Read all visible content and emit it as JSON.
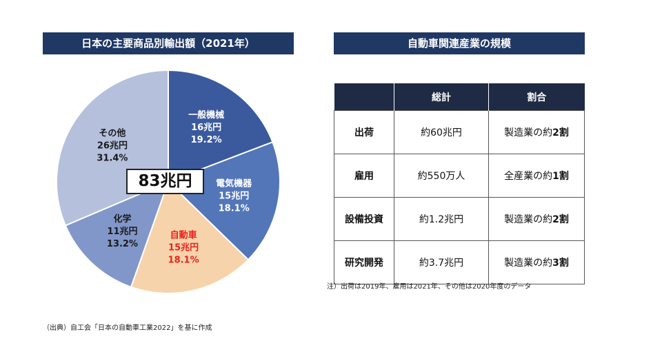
{
  "left_panel": {
    "title": "日本の主要商品別輸出額（2021年）"
  },
  "right_panel": {
    "title": "自動車関連産業の規模"
  },
  "chart_data": {
    "type": "pie",
    "title": "日本の主要商品別輸出額（2021年）",
    "total_label": "83兆円",
    "slices": [
      {
        "label": "一般機械",
        "value_label": "16兆円",
        "percent_label": "19.2%",
        "percent": 19.2,
        "color": "#3b5a9e",
        "text_color": "#ffffff"
      },
      {
        "label": "電気機器",
        "value_label": "15兆円",
        "percent_label": "18.1%",
        "percent": 18.1,
        "color": "#5276b8",
        "text_color": "#ffffff"
      },
      {
        "label": "自動車",
        "value_label": "15兆円",
        "percent_label": "18.1%",
        "percent": 18.1,
        "color": "#f7d3ab",
        "text_color": "#e8231d"
      },
      {
        "label": "化学",
        "value_label": "11兆円",
        "percent_label": "13.2%",
        "percent": 13.2,
        "color": "#8297c9",
        "text_color": "#1a1a1a"
      },
      {
        "label": "その他",
        "value_label": "26兆円",
        "percent_label": "31.4%",
        "percent": 31.4,
        "color": "#b4c0dc",
        "text_color": "#1a1a1a"
      }
    ]
  },
  "table": {
    "headers": [
      "",
      "総計",
      "割合"
    ],
    "rows": [
      {
        "label": "出荷",
        "total": "約60兆円",
        "ratio_prefix": "製造業の約",
        "ratio_num": "2",
        "ratio_suffix": "割"
      },
      {
        "label": "雇用",
        "total": "約550万人",
        "ratio_prefix": "全産業の約",
        "ratio_num": "1",
        "ratio_suffix": "割"
      },
      {
        "label": "設備投資",
        "total": "約1.2兆円",
        "ratio_prefix": "製造業の約",
        "ratio_num": "2",
        "ratio_suffix": "割"
      },
      {
        "label": "研究開発",
        "total": "約3.7兆円",
        "ratio_prefix": "製造業の約",
        "ratio_num": "3",
        "ratio_suffix": "割"
      }
    ]
  },
  "note": "注）出荷は2019年、雇用は2021年、その他は2020年度のデータ",
  "source": "（出典）自工会「日本の自動車工業2022」を基に作成"
}
